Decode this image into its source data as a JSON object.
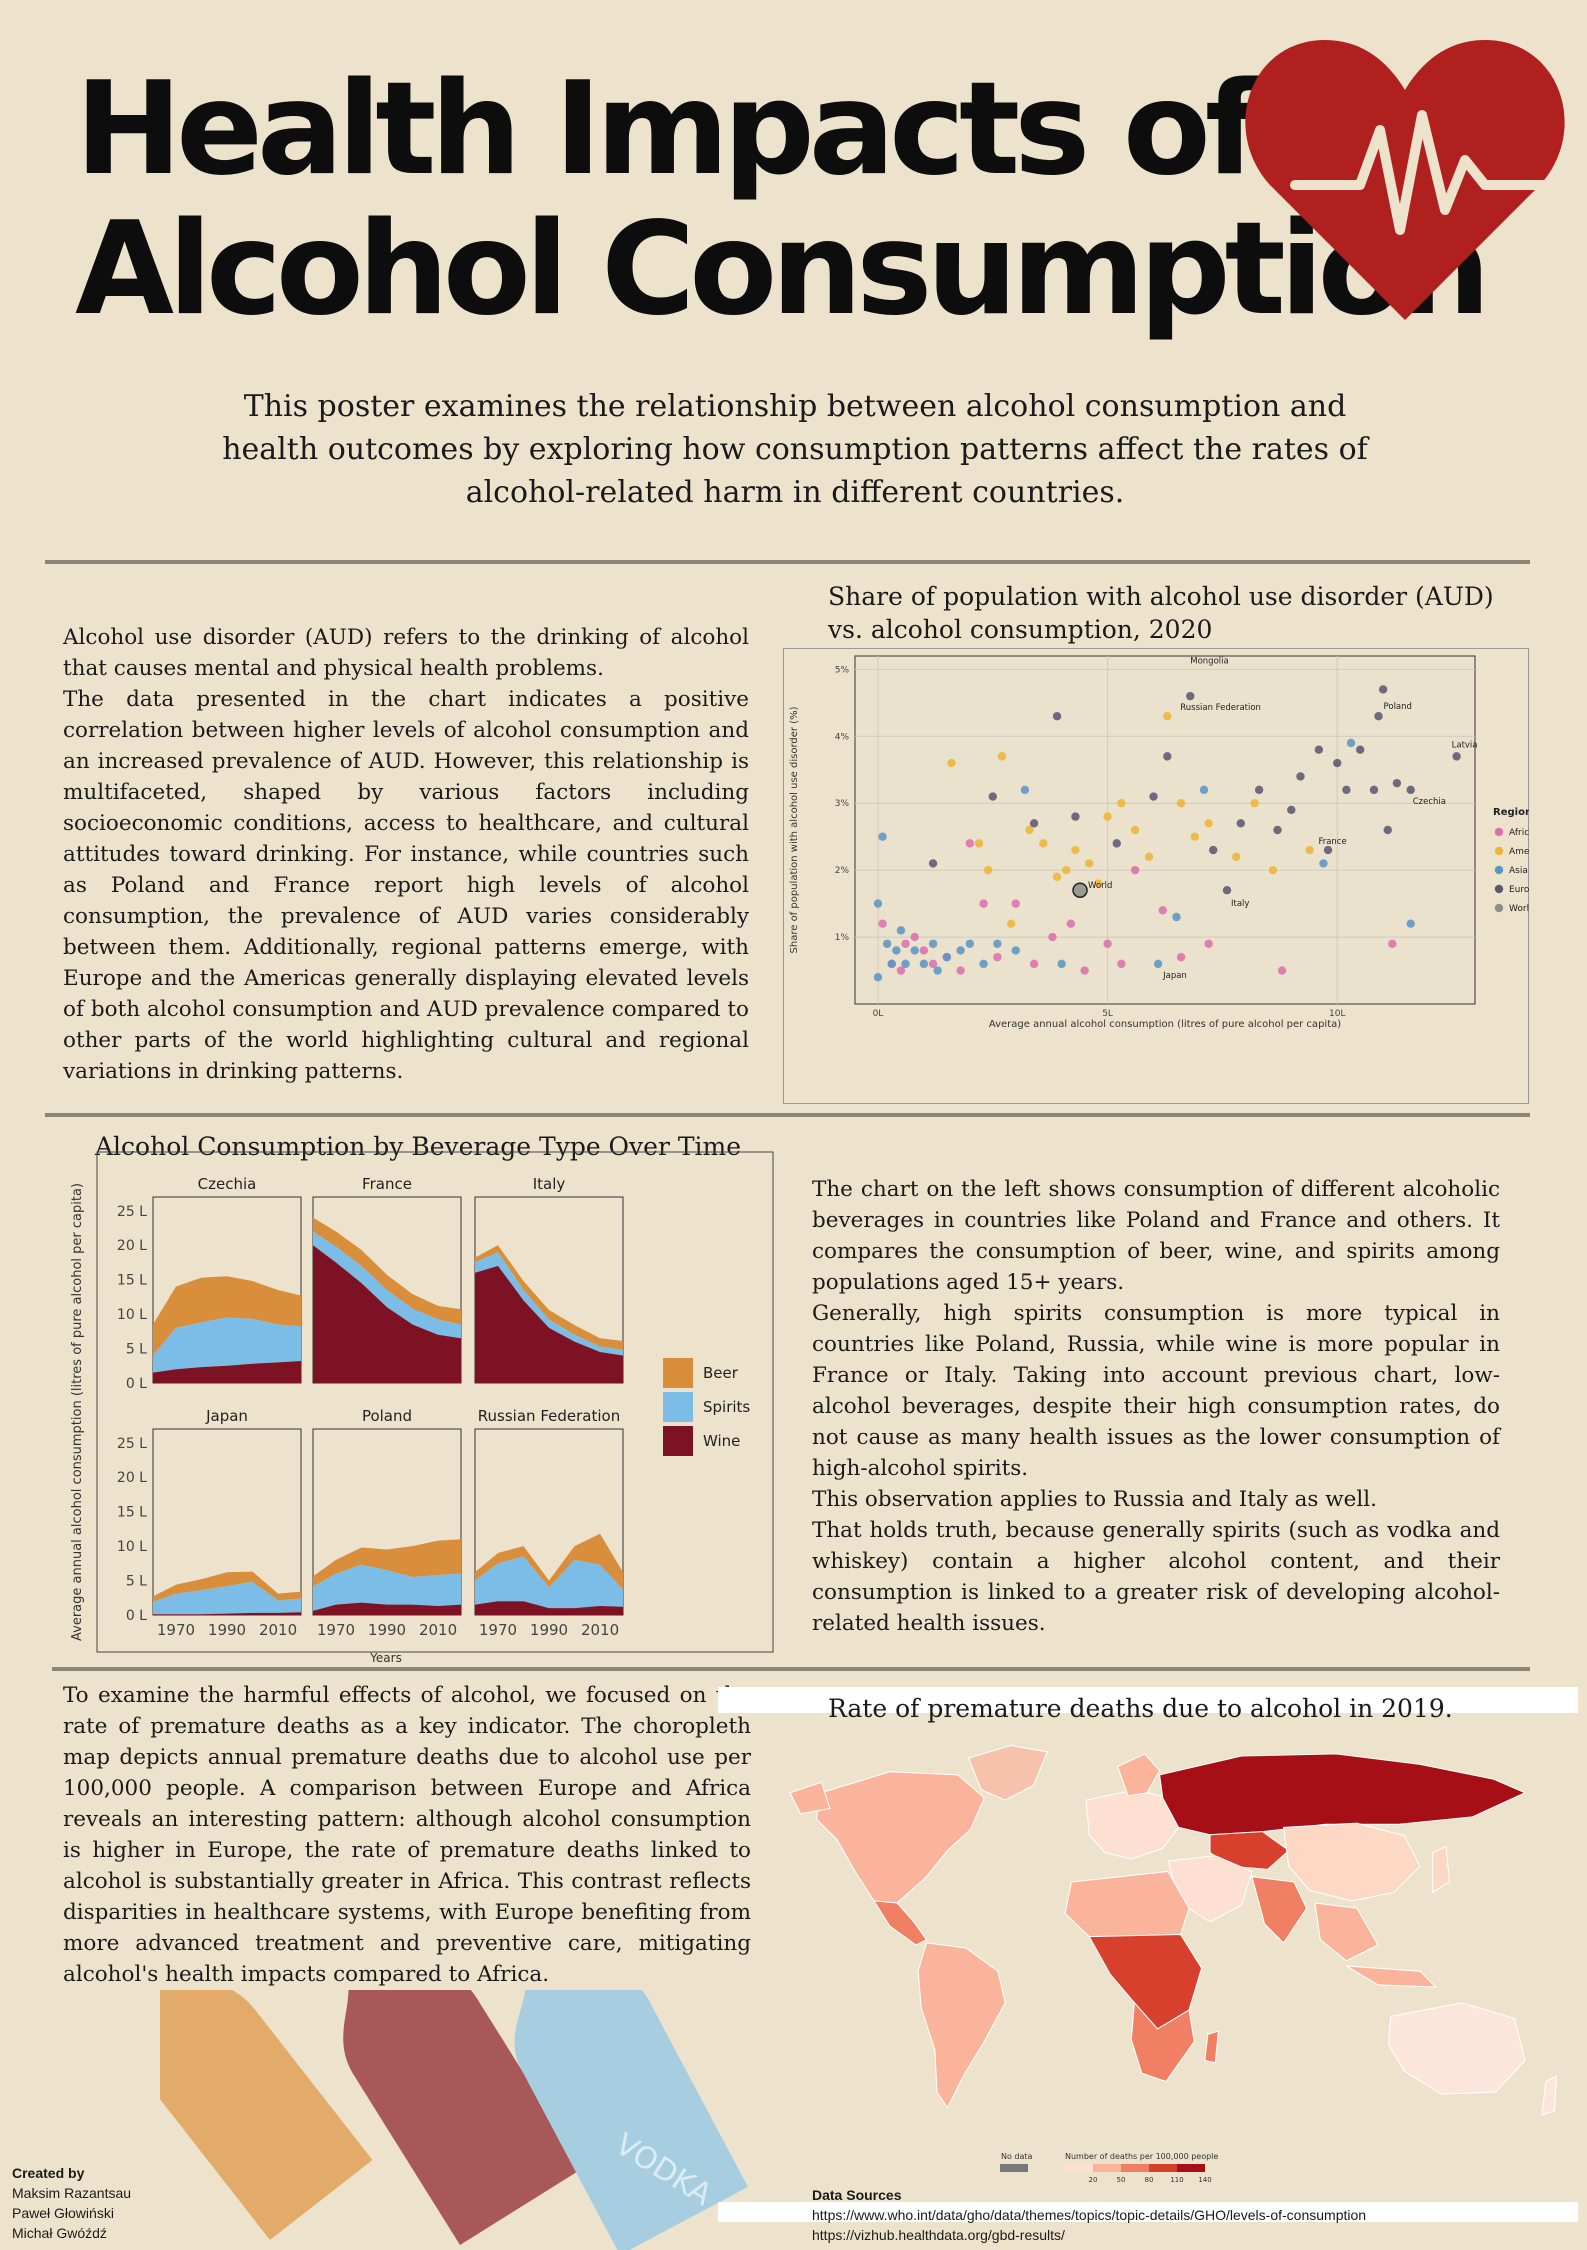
{
  "header": {
    "title_line1": "Health Impacts of",
    "title_line2": "Alcohol Consumption",
    "intro": "This poster examines the relationship between alcohol consumption and health outcomes by exploring how consumption patterns affect the rates of alcohol-related harm in different countries."
  },
  "section1": {
    "paragraphs": [
      "Alcohol use disorder (AUD) refers to the drinking of alcohol that causes mental and physical health problems.",
      "The data presented in the chart indicates a positive correlation between higher levels of alcohol consumption and an increased prevalence of AUD. However, this relationship is multifaceted, shaped by various factors including socioeconomic conditions, access to healthcare, and cultural attitudes toward drinking. For instance, while countries such as Poland and France report high levels of alcohol consumption, the prevalence of AUD varies considerably between them. Additionally, regional patterns emerge, with Europe and the Americas generally displaying elevated levels of both alcohol consumption and AUD prevalence compared to other parts of the world highlighting cultural and regional variations in drinking patterns."
    ]
  },
  "section2": {
    "paragraphs": [
      "The chart on the left shows consumption of different alcoholic beverages in countries like Poland and France and others. It compares the consumption of beer, wine, and spirits among populations aged 15+ years.",
      "Generally, high spirits consumption is more typical in countries like Poland, Russia, while wine is more popular in France or Italy. Taking into account previous chart, low-alcohol beverages, despite their high consumption rates, do not cause as many health issues as the lower consumption of high-alcohol spirits.",
      "This observation applies to Russia and Italy as well.",
      "That holds truth, because generally spirits (such as vodka and whiskey) contain a higher alcohol content, and their consumption is linked to a greater risk of developing alcohol-related health issues."
    ]
  },
  "section3": {
    "paragraph": "To examine the harmful effects of alcohol, we focused on the rate of premature deaths as a key indicator. The choropleth map depicts annual premature deaths due to alcohol use per 100,000 people. A comparison between Europe and Africa reveals an interesting pattern: although alcohol consumption is higher in Europe, the rate of premature deaths linked to alcohol is substantially greater in Africa. This contrast reflects disparities in healthcare systems, with Europe benefiting from more advanced treatment and preventive care, mitigating alcohol's health impacts compared to Africa."
  },
  "map": {
    "title": "Rate of premature deaths due to alcohol in 2019.",
    "legend_nodata": "No data",
    "legend_title": "Number of deaths per 100,000 people",
    "legend_ticks": [
      "20",
      "50",
      "80",
      "110",
      "140"
    ],
    "colors": [
      "#fde0d2",
      "#f9b49b",
      "#f07f63",
      "#d8402e",
      "#a50f15"
    ]
  },
  "bottle_label": "VODKA",
  "colors": {
    "background": "#ede3cc",
    "heart": "#b0201e",
    "beer": "#d98e3b",
    "spirits": "#7cbde8",
    "wine": "#7d1224",
    "africa": "#dc6fae",
    "americas": "#efb43a",
    "asia": "#5b95c6",
    "europe": "#5b5874",
    "world": "#8d8d8d"
  },
  "credits": {
    "heading": "Created by",
    "names": [
      "Maksim Razantsau",
      "Paweł Głowiński",
      "Michał Gwóźdź"
    ]
  },
  "sources": {
    "heading": "Data Sources",
    "links": [
      "https://www.who.int/data/gho/data/themes/topics/topic-details/GHO/levels-of-consumption",
      "https://vizhub.healthdata.org/gbd-results/"
    ]
  },
  "chart_data": [
    {
      "type": "scatter",
      "title": "Share of population with alcohol use disorder (AUD) vs. alcohol consumption, 2020",
      "xlabel": "Average annual alcohol consumption (litres of pure alcohol per capita)",
      "ylabel": "Share of population with alcohol use disorder (%)",
      "xlim": [
        -0.5,
        13
      ],
      "ylim": [
        0,
        5.2
      ],
      "x_ticks": [
        "0L",
        "5L",
        "10L"
      ],
      "y_ticks": [
        "1%",
        "2%",
        "3%",
        "4%",
        "5%"
      ],
      "grid": true,
      "legend_title": "Region",
      "legend_position": "right",
      "series": [
        {
          "name": "Africa",
          "points": [
            [
              0.1,
              1.2
            ],
            [
              0.3,
              0.6
            ],
            [
              0.5,
              0.5
            ],
            [
              0.6,
              0.9
            ],
            [
              0.8,
              1.0
            ],
            [
              1.0,
              0.8
            ],
            [
              1.2,
              0.6
            ],
            [
              1.5,
              0.7
            ],
            [
              1.8,
              0.5
            ],
            [
              2.0,
              2.4
            ],
            [
              2.3,
              1.5
            ],
            [
              2.6,
              0.7
            ],
            [
              3.0,
              1.5
            ],
            [
              3.4,
              0.6
            ],
            [
              3.8,
              1.0
            ],
            [
              4.2,
              1.2
            ],
            [
              4.5,
              0.5
            ],
            [
              5.0,
              0.9
            ],
            [
              5.3,
              0.6
            ],
            [
              5.6,
              2.0
            ],
            [
              6.2,
              1.4
            ],
            [
              6.6,
              0.7
            ],
            [
              7.2,
              0.9
            ],
            [
              8.8,
              0.5
            ],
            [
              11.2,
              0.9
            ]
          ]
        },
        {
          "name": "Americas",
          "points": [
            [
              1.6,
              3.6
            ],
            [
              2.2,
              2.4
            ],
            [
              2.7,
              3.7
            ],
            [
              2.9,
              1.2
            ],
            [
              3.3,
              2.6
            ],
            [
              3.6,
              2.4
            ],
            [
              3.9,
              1.9
            ],
            [
              4.1,
              2.0
            ],
            [
              4.3,
              2.3
            ],
            [
              4.6,
              2.1
            ],
            [
              5.0,
              2.8
            ],
            [
              5.3,
              3.0
            ],
            [
              5.6,
              2.6
            ],
            [
              5.9,
              2.2
            ],
            [
              6.3,
              4.3
            ],
            [
              6.6,
              3.0
            ],
            [
              6.9,
              2.5
            ],
            [
              7.2,
              2.7
            ],
            [
              7.8,
              2.2
            ],
            [
              8.2,
              3.0
            ],
            [
              8.6,
              2.0
            ],
            [
              9.4,
              2.3
            ],
            [
              2.4,
              2.0
            ],
            [
              4.8,
              1.8
            ]
          ]
        },
        {
          "name": "Asia",
          "points": [
            [
              0.0,
              0.4
            ],
            [
              0.0,
              1.5
            ],
            [
              0.1,
              2.5
            ],
            [
              0.2,
              0.9
            ],
            [
              0.3,
              0.6
            ],
            [
              0.4,
              0.8
            ],
            [
              0.6,
              0.6
            ],
            [
              0.8,
              0.8
            ],
            [
              1.0,
              0.6
            ],
            [
              1.2,
              0.9
            ],
            [
              1.5,
              0.7
            ],
            [
              1.8,
              0.8
            ],
            [
              2.0,
              0.9
            ],
            [
              2.3,
              0.6
            ],
            [
              2.6,
              0.9
            ],
            [
              3.0,
              0.8
            ],
            [
              3.2,
              3.2
            ],
            [
              4.0,
              0.6
            ],
            [
              6.1,
              0.6
            ],
            [
              6.5,
              1.3
            ],
            [
              7.1,
              3.2
            ],
            [
              9.7,
              2.1
            ],
            [
              10.3,
              3.9
            ],
            [
              11.6,
              1.2
            ],
            [
              1.3,
              0.5
            ],
            [
              0.5,
              1.1
            ]
          ]
        },
        {
          "name": "Europe",
          "points": [
            [
              1.2,
              2.1
            ],
            [
              2.5,
              3.1
            ],
            [
              3.9,
              4.3
            ],
            [
              4.3,
              2.8
            ],
            [
              5.2,
              2.4
            ],
            [
              6.0,
              3.1
            ],
            [
              6.3,
              3.7
            ],
            [
              6.8,
              4.6
            ],
            [
              7.3,
              2.3
            ],
            [
              7.9,
              2.7
            ],
            [
              8.3,
              3.2
            ],
            [
              8.7,
              2.6
            ],
            [
              9.0,
              2.9
            ],
            [
              9.2,
              3.4
            ],
            [
              9.6,
              3.8
            ],
            [
              10.0,
              3.6
            ],
            [
              10.2,
              3.2
            ],
            [
              10.5,
              3.8
            ],
            [
              10.8,
              3.2
            ],
            [
              11.1,
              2.6
            ],
            [
              11.3,
              3.3
            ],
            [
              11.6,
              3.2
            ],
            [
              12.6,
              3.7
            ],
            [
              10.9,
              4.3
            ],
            [
              11.0,
              4.7
            ],
            [
              9.8,
              2.3
            ],
            [
              7.6,
              1.7
            ],
            [
              3.4,
              2.7
            ]
          ]
        },
        {
          "name": "World",
          "points": [
            [
              4.4,
              1.7
            ]
          ]
        }
      ],
      "annotations": [
        "Mongolia",
        "Russian Federation",
        "Poland",
        "Latvia",
        "Czechia",
        "France",
        "World",
        "Italy",
        "Japan"
      ]
    },
    {
      "type": "area",
      "title": "Alcohol Consumption by Beverage Type Over Time",
      "xlabel": "Years",
      "ylabel": "Average annual alcohol consumption (litres of pure alcohol per capita)",
      "ylim": [
        0,
        27
      ],
      "y_ticks": [
        "0 L",
        "5 L",
        "10 L",
        "15 L",
        "20 L",
        "25 L"
      ],
      "x_ticks": [
        "1970",
        "1990",
        "2010"
      ],
      "x_range": [
        1961,
        2019
      ],
      "legend": [
        "Beer",
        "Spirits",
        "Wine"
      ],
      "panels": [
        {
          "name": "Czechia",
          "years": [
            1961,
            1970,
            1980,
            1990,
            2000,
            2010,
            2019
          ],
          "wine": [
            1.5,
            2.0,
            2.3,
            2.5,
            2.8,
            3.0,
            3.2
          ],
          "spirits": [
            2.5,
            6.0,
            6.5,
            7.0,
            6.5,
            5.5,
            5.0
          ],
          "beer": [
            4.5,
            6.0,
            6.5,
            6.0,
            5.5,
            5.0,
            4.5
          ]
        },
        {
          "name": "France",
          "years": [
            1961,
            1970,
            1980,
            1990,
            2000,
            2010,
            2019
          ],
          "wine": [
            20.0,
            17.5,
            14.5,
            11.0,
            8.5,
            7.0,
            6.5
          ],
          "spirits": [
            2.0,
            2.3,
            2.5,
            2.5,
            2.3,
            2.2,
            2.0
          ],
          "beer": [
            2.0,
            2.2,
            2.3,
            2.2,
            2.1,
            2.0,
            2.2
          ]
        },
        {
          "name": "Italy",
          "years": [
            1961,
            1970,
            1980,
            1990,
            2000,
            2010,
            2019
          ],
          "wine": [
            16.0,
            17.0,
            12.0,
            8.0,
            6.0,
            4.5,
            4.0
          ],
          "spirits": [
            1.5,
            2.0,
            1.5,
            1.2,
            1.0,
            0.8,
            0.8
          ],
          "beer": [
            0.7,
            1.0,
            1.3,
            1.4,
            1.4,
            1.2,
            1.3
          ]
        },
        {
          "name": "Japan",
          "years": [
            1961,
            1970,
            1980,
            1990,
            2000,
            2010,
            2019
          ],
          "wine": [
            0.1,
            0.1,
            0.1,
            0.2,
            0.3,
            0.3,
            0.4
          ],
          "spirits": [
            1.8,
            3.0,
            3.5,
            4.0,
            4.5,
            1.8,
            2.0
          ],
          "beer": [
            0.8,
            1.3,
            1.6,
            2.0,
            1.5,
            1.0,
            1.0
          ]
        },
        {
          "name": "Poland",
          "years": [
            1961,
            1970,
            1980,
            1990,
            2000,
            2010,
            2019
          ],
          "wine": [
            0.6,
            1.5,
            1.8,
            1.5,
            1.5,
            1.3,
            1.5
          ],
          "spirits": [
            3.5,
            4.5,
            5.5,
            5.0,
            4.0,
            4.5,
            4.5
          ],
          "beer": [
            1.5,
            2.0,
            2.5,
            3.0,
            4.5,
            5.0,
            5.0
          ]
        },
        {
          "name": "Russian Federation",
          "years": [
            1961,
            1970,
            1980,
            1990,
            2000,
            2010,
            2019
          ],
          "wine": [
            1.5,
            2.0,
            2.0,
            1.0,
            1.0,
            1.3,
            1.2
          ],
          "spirits": [
            3.5,
            5.5,
            6.5,
            3.0,
            7.0,
            6.0,
            2.5
          ],
          "beer": [
            1.2,
            1.5,
            1.5,
            1.0,
            2.0,
            4.5,
            2.5
          ]
        }
      ]
    }
  ]
}
